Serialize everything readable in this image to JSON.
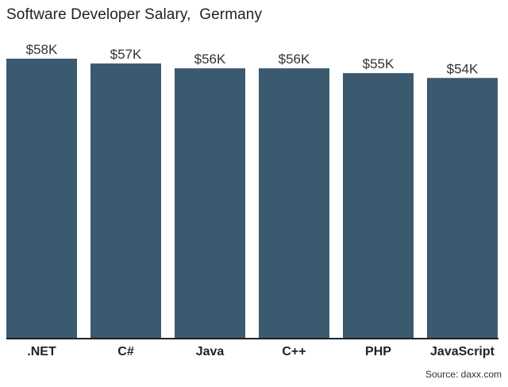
{
  "title": "Software Developer Salary,  Germany",
  "source": "Source: daxx.com",
  "colors": {
    "bar": "#3b5a70",
    "axis": "#222222",
    "text": "#333333"
  },
  "chart_data": {
    "type": "bar",
    "title": "Software Developer Salary,  Germany",
    "categories": [
      ".NET",
      "C#",
      "Java",
      "C++",
      "PHP",
      "JavaScript"
    ],
    "values": [
      58,
      57,
      56,
      56,
      55,
      54
    ],
    "data_labels": [
      "$58K",
      "$57K",
      "$56K",
      "$56K",
      "$55K",
      "$54K"
    ],
    "unit": "$K",
    "xlabel": "",
    "ylabel": "",
    "ylim": [
      0,
      58
    ],
    "grid": false,
    "legend": "none"
  }
}
